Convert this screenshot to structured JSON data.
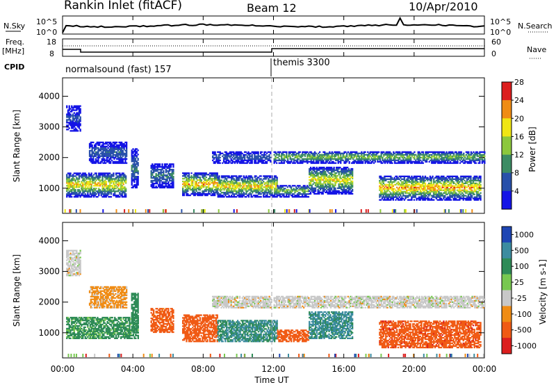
{
  "header": {
    "station": "Rankin Inlet (fitACF)",
    "beam": "Beam 12",
    "date": "10/Apr/2010"
  },
  "top_panels": {
    "nsky_label": "N.Sky",
    "nsearch_label": "N.Search",
    "noise_ticks": [
      "10^5",
      "10^0"
    ],
    "freq_label_1": "Freq.",
    "freq_label_2": "[MHz]",
    "freq_ticks": [
      "18",
      "8"
    ],
    "nave_ticks": [
      "60",
      "0"
    ],
    "nave_label": "Nave",
    "cpid_label": "CPID",
    "cpid_segments": [
      {
        "name": "normalsound (fast) 157",
        "start_hour": 0,
        "end_hour": 12
      },
      {
        "name": "themis 3300",
        "start_hour": 12,
        "end_hour": 24
      }
    ]
  },
  "x_axis": {
    "label": "Time UT",
    "ticks": [
      "00:00",
      "04:00",
      "08:00",
      "12:00",
      "16:00",
      "20:00",
      "00:00"
    ]
  },
  "chart_data": [
    {
      "type": "heatmap",
      "name": "power",
      "ylabel": "Slant Range [km]",
      "xlim": [
        0,
        24
      ],
      "ylim": [
        180,
        4600
      ],
      "yticks": [
        1000,
        2000,
        3000,
        4000
      ],
      "colorbar": {
        "label": "Power [dB]",
        "levels": [
          4,
          8,
          12,
          16,
          20,
          24,
          28
        ],
        "colors": [
          "#1414e6",
          "#2850aa",
          "#3c8c64",
          "#8cc83c",
          "#f0e614",
          "#f08c14",
          "#dc1e1e"
        ]
      },
      "echo_bands": [
        {
          "t0": 0.2,
          "t1": 3.6,
          "r0": 700,
          "r1": 1500,
          "peak": 26
        },
        {
          "t0": 0.2,
          "t1": 1.0,
          "r0": 2850,
          "r1": 3700,
          "peak": 10
        },
        {
          "t0": 1.5,
          "t1": 3.6,
          "r0": 1800,
          "r1": 2500,
          "peak": 12
        },
        {
          "t0": 3.9,
          "t1": 4.3,
          "r0": 1000,
          "r1": 2300,
          "peak": 14
        },
        {
          "t0": 5.0,
          "t1": 6.3,
          "r0": 1000,
          "r1": 1800,
          "peak": 14
        },
        {
          "t0": 6.8,
          "t1": 8.8,
          "r0": 750,
          "r1": 1500,
          "peak": 28
        },
        {
          "t0": 8.8,
          "t1": 12.2,
          "r0": 700,
          "r1": 1400,
          "peak": 26
        },
        {
          "t0": 8.5,
          "t1": 11.8,
          "r0": 1800,
          "r1": 2200,
          "peak": 12
        },
        {
          "t0": 12.2,
          "t1": 14.0,
          "r0": 700,
          "r1": 1100,
          "peak": 20
        },
        {
          "t0": 14.0,
          "t1": 16.5,
          "r0": 800,
          "r1": 1700,
          "peak": 24
        },
        {
          "t0": 12.0,
          "t1": 24.0,
          "r0": 1800,
          "r1": 2200,
          "peak": 20
        },
        {
          "t0": 18.0,
          "t1": 23.8,
          "r0": 600,
          "r1": 1400,
          "peak": 28
        }
      ]
    },
    {
      "type": "heatmap",
      "name": "velocity",
      "ylabel": "Slant Range [km]",
      "xlim": [
        0,
        24
      ],
      "ylim": [
        180,
        4600
      ],
      "yticks": [
        1000,
        2000,
        3000,
        4000
      ],
      "colorbar": {
        "label": "Velocity [m s-1]",
        "levels": [
          1000,
          500,
          100,
          25,
          -25,
          -100,
          -500,
          -1000
        ],
        "colors": [
          "#1e46b4",
          "#3c8ca0",
          "#2e8b57",
          "#78c850",
          "#c8c8c8",
          "#f08c14",
          "#f05a14",
          "#dc1e1e"
        ]
      },
      "echo_bands": [
        {
          "t0": 0.2,
          "t1": 4.3,
          "r0": 800,
          "r1": 1500,
          "vel": 150
        },
        {
          "t0": 0.2,
          "t1": 1.0,
          "r0": 2850,
          "r1": 3700,
          "vel": 0
        },
        {
          "t0": 1.5,
          "t1": 3.6,
          "r0": 1800,
          "r1": 2500,
          "vel": -50
        },
        {
          "t0": 3.9,
          "t1": 4.3,
          "r0": 1000,
          "r1": 2300,
          "vel": 300
        },
        {
          "t0": 5.0,
          "t1": 6.3,
          "r0": 1000,
          "r1": 1800,
          "vel": -200
        },
        {
          "t0": 6.8,
          "t1": 8.8,
          "r0": 700,
          "r1": 1600,
          "vel": -300
        },
        {
          "t0": 8.8,
          "t1": 12.2,
          "r0": 700,
          "r1": 1400,
          "vel": 500
        },
        {
          "t0": 8.5,
          "t1": 11.8,
          "r0": 1800,
          "r1": 2200,
          "vel": 0
        },
        {
          "t0": 12.2,
          "t1": 14.0,
          "r0": 700,
          "r1": 1100,
          "vel": -300
        },
        {
          "t0": 14.0,
          "t1": 16.5,
          "r0": 800,
          "r1": 1700,
          "vel": 600
        },
        {
          "t0": 12.0,
          "t1": 24.0,
          "r0": 1800,
          "r1": 2200,
          "vel": 0
        },
        {
          "t0": 18.0,
          "t1": 23.8,
          "r0": 500,
          "r1": 1400,
          "vel": -350
        }
      ]
    }
  ]
}
